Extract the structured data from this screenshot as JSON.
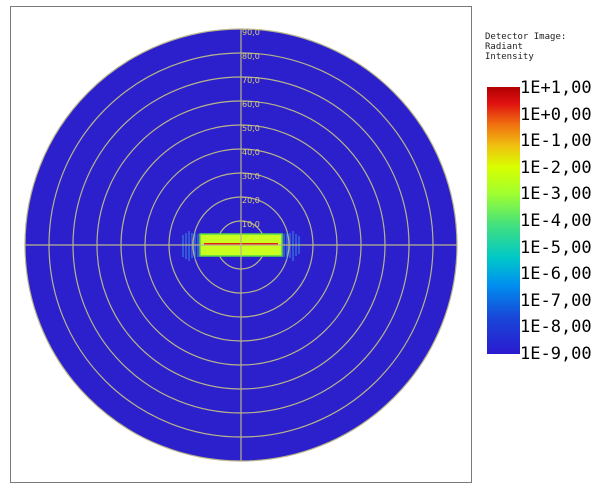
{
  "legend": {
    "title": "Detector Image:\nRadiant\nIntensity",
    "labels": [
      "1E+1,00",
      "1E+0,00",
      "1E-1,00",
      "1E-2,00",
      "1E-3,00",
      "1E-4,00",
      "1E-5,00",
      "1E-6,00",
      "1E-7,00",
      "1E-8,00",
      "1E-9,00"
    ]
  },
  "polar_plot": {
    "ring_labels": [
      "90,0",
      "80,0",
      "70,0",
      "60,0",
      "50,0",
      "40,0",
      "30,0",
      "20,0",
      "10,0"
    ],
    "background_color": "#2b20cc",
    "grid_color": "#b8b48a",
    "hotspot_color": "#c8ff20",
    "peak_color": "#e02010"
  }
}
